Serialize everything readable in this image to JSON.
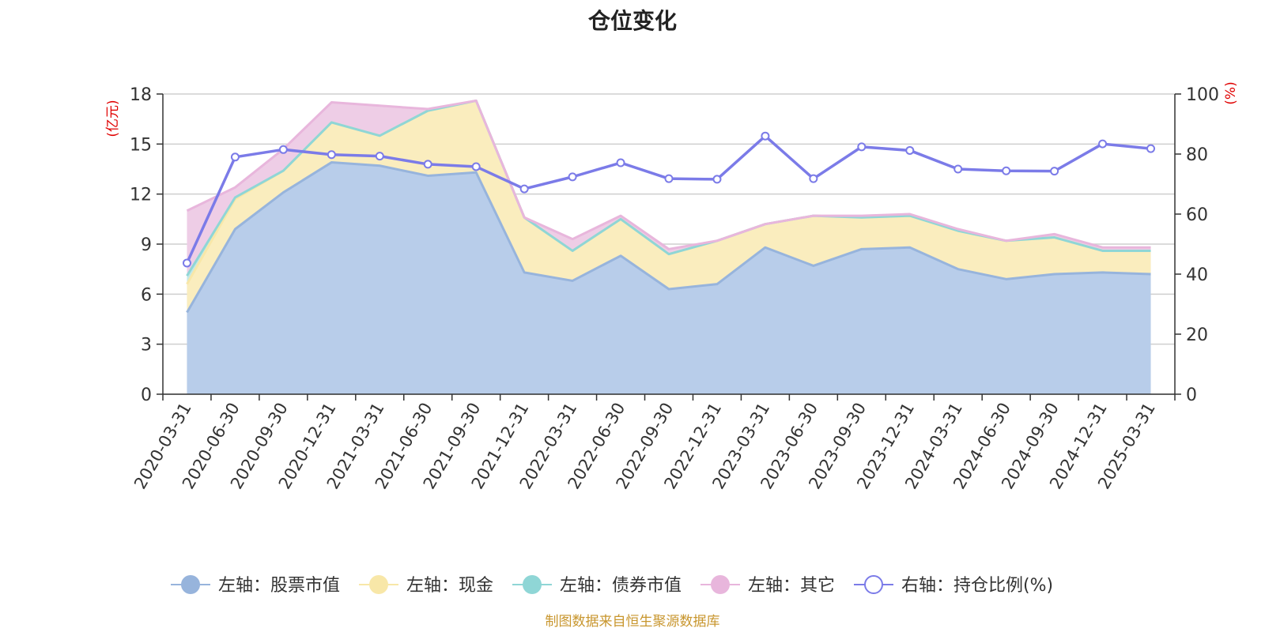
{
  "chart_data": {
    "type": "area",
    "title": "仓位变化",
    "left_unit": "(亿元)",
    "right_unit": "(%)",
    "source": "制图数据来自恒生聚源数据库",
    "x": [
      "2020-03-31",
      "2020-06-30",
      "2020-09-30",
      "2020-12-31",
      "2021-03-31",
      "2021-06-30",
      "2021-09-30",
      "2021-12-31",
      "2022-03-31",
      "2022-06-30",
      "2022-09-30",
      "2022-12-31",
      "2023-03-31",
      "2023-06-30",
      "2023-09-30",
      "2023-12-31",
      "2024-03-31",
      "2024-06-30",
      "2024-09-30",
      "2024-12-31",
      "2025-03-31"
    ],
    "left_axis": {
      "min": 0,
      "max": 18,
      "ticks": [
        "0",
        "3",
        "6",
        "9",
        "12",
        "15",
        "18"
      ]
    },
    "right_axis": {
      "min": 0,
      "max": 100,
      "ticks": [
        "0",
        "20",
        "40",
        "60",
        "80",
        "100"
      ]
    },
    "grid": true,
    "legend_position": "bottom",
    "series": [
      {
        "name": "左轴：股票市值",
        "axis": "left",
        "stack_level": 0,
        "color": "#97b4dc",
        "fill": "#b8cdea",
        "values": [
          4.9,
          9.9,
          12.1,
          13.9,
          13.7,
          13.1,
          13.3,
          7.3,
          6.8,
          8.3,
          6.3,
          6.6,
          8.8,
          7.7,
          8.7,
          8.8,
          7.5,
          6.9,
          7.2,
          7.3,
          7.2
        ]
      },
      {
        "name": "左轴：现金",
        "axis": "left",
        "stack_level": 1,
        "color": "#f8e7a8",
        "fill": "#faedbe",
        "values": [
          1.7,
          1.8,
          1.3,
          2.4,
          1.8,
          3.9,
          4.3,
          3.3,
          1.8,
          2.2,
          2.1,
          2.6,
          1.4,
          3.0,
          1.9,
          1.9,
          2.3,
          2.3,
          2.2,
          1.3,
          1.4
        ]
      },
      {
        "name": "左轴：债券市值",
        "axis": "left",
        "stack_level": 2,
        "color": "#8fd6d6",
        "fill": "#c4e8e6",
        "values": [
          0.5,
          0.1,
          0.0,
          0.0,
          0.0,
          0.0,
          0.0,
          0.0,
          0.0,
          0.0,
          0.0,
          0.0,
          0.0,
          0.0,
          0.0,
          0.0,
          0.0,
          0.0,
          0.0,
          0.0,
          0.0
        ]
      },
      {
        "name": "左轴：其它",
        "axis": "left",
        "stack_level": 3,
        "color": "#e8b6dc",
        "fill": "#eecde6",
        "values": [
          3.9,
          0.6,
          1.3,
          1.2,
          1.8,
          0.1,
          0.0,
          0.0,
          0.7,
          0.2,
          0.3,
          0.0,
          0.0,
          0.0,
          0.1,
          0.1,
          0.1,
          0.0,
          0.2,
          0.2,
          0.2
        ]
      },
      {
        "name": "右轴：持仓比例(%)",
        "axis": "right",
        "color": "#7b7be8",
        "values": [
          43.7,
          79.0,
          81.5,
          79.8,
          79.3,
          76.6,
          75.8,
          68.4,
          72.4,
          77.1,
          71.8,
          71.6,
          86.0,
          71.8,
          82.4,
          81.2,
          75.0,
          74.4,
          74.3,
          83.4,
          81.8
        ]
      }
    ]
  }
}
